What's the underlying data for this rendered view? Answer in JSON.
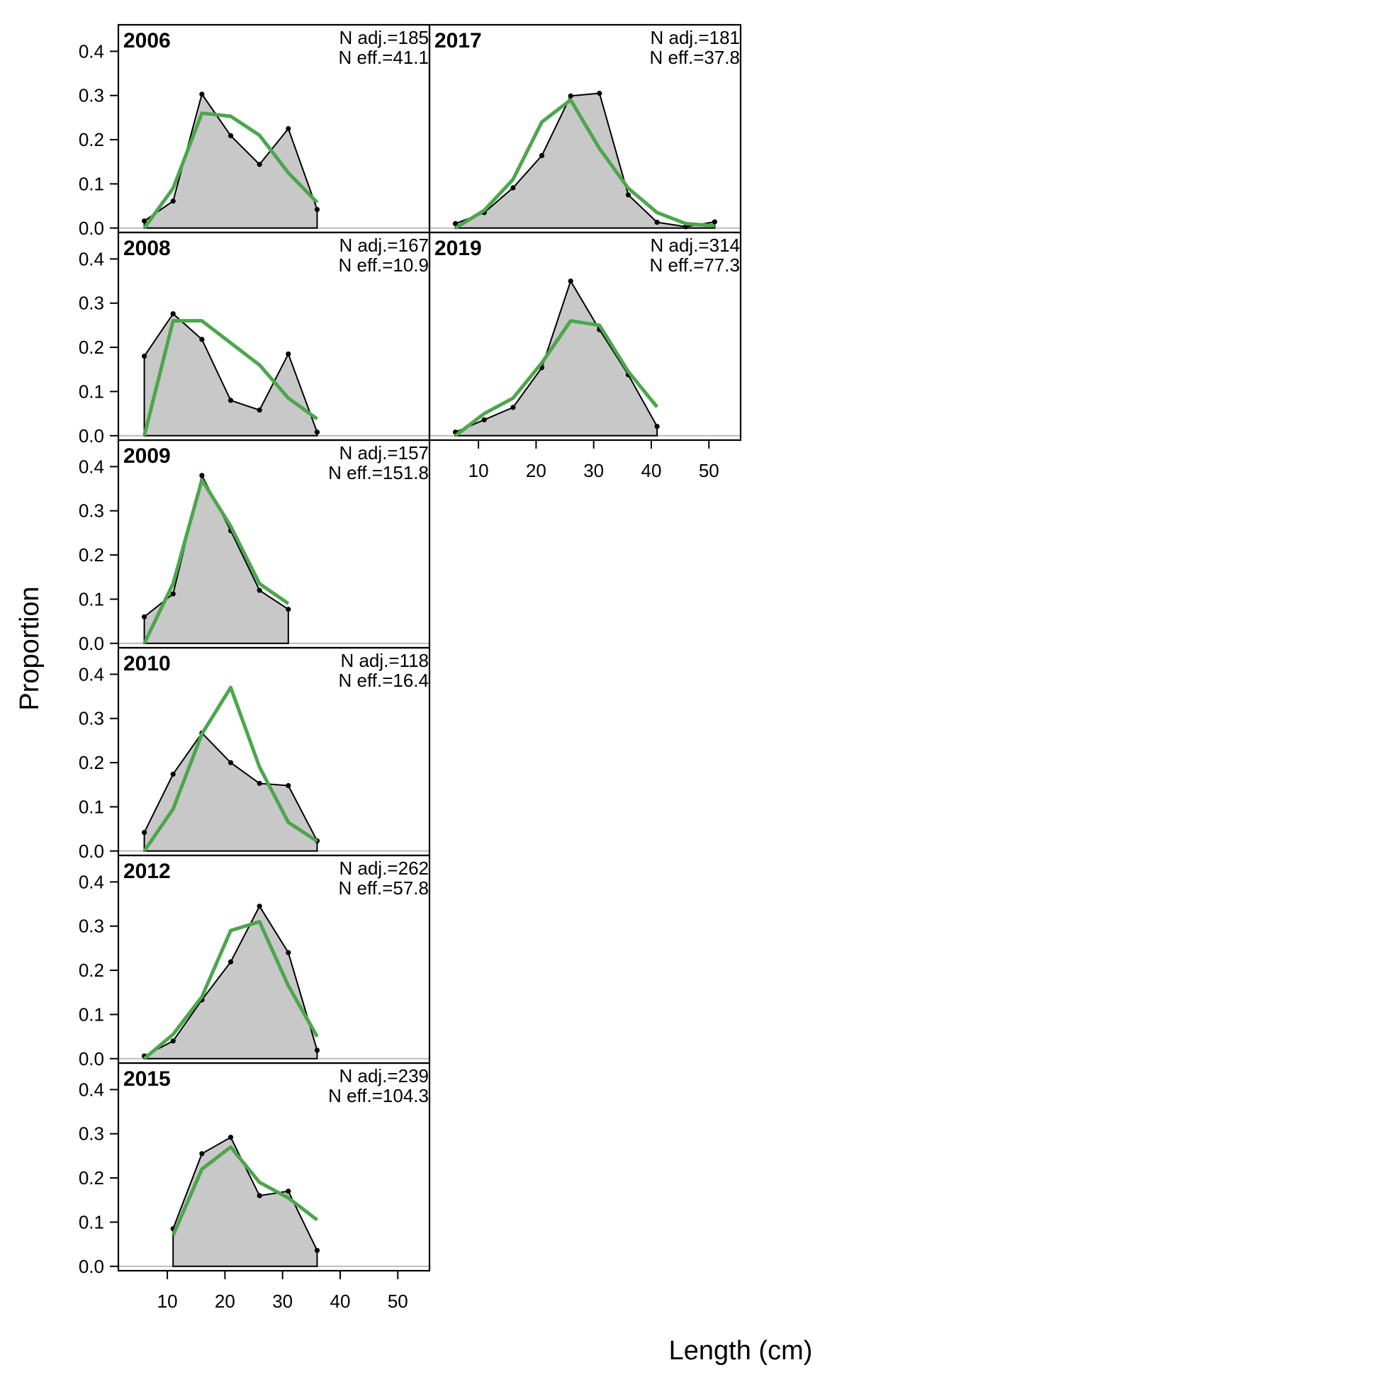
{
  "figure": {
    "ylabel": "Proportion",
    "xlabel": "Length (cm)"
  },
  "axes": {
    "x_ticks": [
      10,
      20,
      30,
      40,
      50
    ],
    "y_ticks": [
      "0.0",
      "0.1",
      "0.2",
      "0.3",
      "0.4"
    ],
    "xlim": [
      1.5,
      55.5
    ],
    "ylim": [
      -0.01,
      0.46
    ]
  },
  "colors": {
    "observed_fill": "#c8c8c8",
    "observed_line": "#000000",
    "expected_line": "#4ca64c",
    "zero_line": "#bbbbbb"
  },
  "chart_data": [
    {
      "type": "area",
      "panel": "2006",
      "n_adj": "N adj.=185",
      "n_eff": "N eff.=41.1",
      "x": [
        6,
        11,
        16,
        21,
        26,
        31,
        36
      ],
      "observed": [
        0.016,
        0.061,
        0.303,
        0.209,
        0.144,
        0.225,
        0.042
      ],
      "expected": [
        0.0,
        0.09,
        0.26,
        0.253,
        0.21,
        0.125,
        0.058
      ]
    },
    {
      "type": "area",
      "panel": "2008",
      "n_adj": "N adj.=167",
      "n_eff": "N eff.=10.9",
      "x": [
        6,
        11,
        16,
        21,
        26,
        31,
        36
      ],
      "observed": [
        0.18,
        0.276,
        0.218,
        0.08,
        0.058,
        0.185,
        0.008
      ],
      "expected": [
        0.0,
        0.26,
        0.26,
        0.21,
        0.16,
        0.085,
        0.038
      ]
    },
    {
      "type": "area",
      "panel": "2009",
      "n_adj": "N adj.=157",
      "n_eff": "N eff.=151.8",
      "x": [
        6,
        11,
        16,
        21,
        26,
        31
      ],
      "observed": [
        0.06,
        0.112,
        0.38,
        0.255,
        0.12,
        0.077
      ],
      "expected": [
        0.0,
        0.135,
        0.37,
        0.265,
        0.135,
        0.09
      ]
    },
    {
      "type": "area",
      "panel": "2010",
      "n_adj": "N adj.=118",
      "n_eff": "N eff.=16.4",
      "x": [
        6,
        11,
        16,
        21,
        26,
        31,
        36
      ],
      "observed": [
        0.042,
        0.174,
        0.267,
        0.2,
        0.153,
        0.148,
        0.023
      ],
      "expected": [
        0.0,
        0.095,
        0.265,
        0.37,
        0.19,
        0.065,
        0.022
      ]
    },
    {
      "type": "area",
      "panel": "2012",
      "n_adj": "N adj.=262",
      "n_eff": "N eff.=57.8",
      "x": [
        6,
        11,
        16,
        21,
        26,
        31,
        36
      ],
      "observed": [
        0.006,
        0.04,
        0.133,
        0.219,
        0.345,
        0.24,
        0.019
      ],
      "expected": [
        0.0,
        0.055,
        0.14,
        0.29,
        0.31,
        0.165,
        0.05
      ]
    },
    {
      "type": "area",
      "panel": "2015",
      "n_adj": "N adj.=239",
      "n_eff": "N eff.=104.3",
      "x": [
        11,
        16,
        21,
        26,
        31,
        36
      ],
      "observed": [
        0.085,
        0.255,
        0.292,
        0.16,
        0.17,
        0.036
      ],
      "expected": [
        0.07,
        0.22,
        0.27,
        0.19,
        0.155,
        0.105
      ]
    },
    {
      "type": "area",
      "panel": "2017",
      "n_adj": "N adj.=181",
      "n_eff": "N eff.=37.8",
      "x": [
        6,
        11,
        16,
        21,
        26,
        31,
        36,
        41,
        46,
        51
      ],
      "observed": [
        0.01,
        0.035,
        0.091,
        0.164,
        0.299,
        0.305,
        0.075,
        0.013,
        0.003,
        0.014
      ],
      "expected": [
        0.0,
        0.04,
        0.11,
        0.24,
        0.29,
        0.18,
        0.09,
        0.035,
        0.01,
        0.005
      ]
    },
    {
      "type": "area",
      "panel": "2019",
      "n_adj": "N adj.=314",
      "n_eff": "N eff.=77.3",
      "x": [
        6,
        11,
        16,
        21,
        26,
        31,
        36,
        41
      ],
      "observed": [
        0.008,
        0.036,
        0.064,
        0.154,
        0.35,
        0.24,
        0.138,
        0.021
      ],
      "expected": [
        0.0,
        0.05,
        0.085,
        0.165,
        0.26,
        0.25,
        0.145,
        0.065
      ]
    }
  ]
}
